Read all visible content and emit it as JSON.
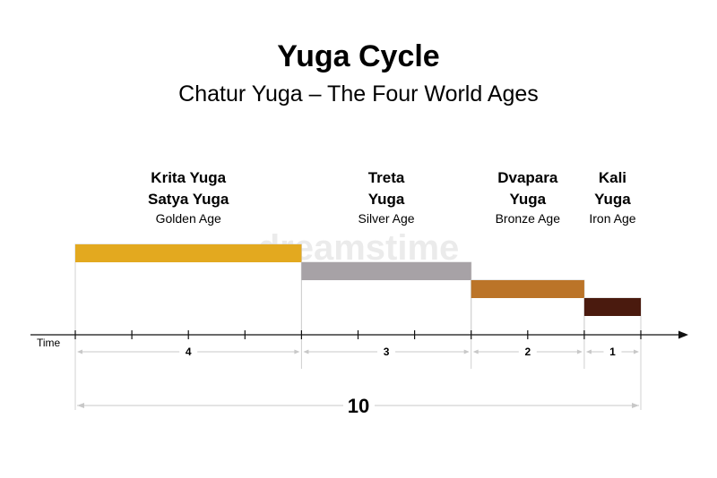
{
  "title": "Yuga Cycle",
  "subtitle": "Chatur Yuga – The Four World Ages",
  "axis_label": "Time",
  "total_label": "10",
  "watermark": "dreamstime",
  "chart_data": {
    "type": "bar",
    "title": "Yuga Cycle",
    "subtitle": "Chatur Yuga – The Four World Ages",
    "xlabel": "Time",
    "total": 10,
    "series": [
      {
        "lines": [
          "Krita Yuga",
          "Satya Yuga"
        ],
        "age": "Golden Age",
        "duration": 4,
        "level": 4,
        "color": "#E3A91F",
        "duration_label": "4"
      },
      {
        "lines": [
          "Treta",
          "Yuga"
        ],
        "age": "Silver Age",
        "duration": 3,
        "level": 3,
        "color": "#A7A2A6",
        "duration_label": "3"
      },
      {
        "lines": [
          "Dvapara",
          "Yuga"
        ],
        "age": "Bronze Age",
        "duration": 2,
        "level": 2,
        "color": "#BB7428",
        "duration_label": "2"
      },
      {
        "lines": [
          "Kali",
          "Yuga"
        ],
        "age": "Iron Age",
        "duration": 1,
        "level": 1,
        "color": "#4A1A0E",
        "duration_label": "1"
      }
    ]
  }
}
